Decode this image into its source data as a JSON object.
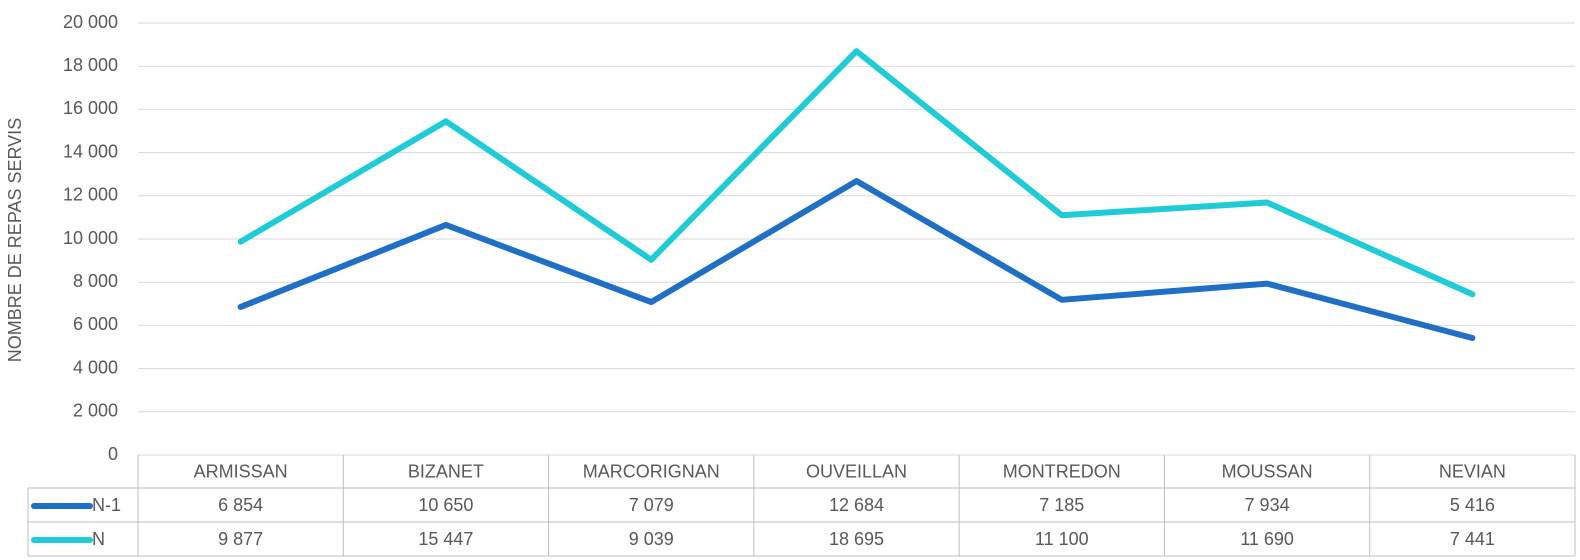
{
  "chart_data": {
    "type": "line",
    "y_label": "NOMBRE DE REPAS SERVIS",
    "categories": [
      "ARMISSAN",
      "BIZANET",
      "MARCORIGNAN",
      "OUVEILLAN",
      "MONTREDON",
      "MOUSSAN",
      "NEVIAN"
    ],
    "series": [
      {
        "name": "N-1",
        "color": "#1f6fc5",
        "values": [
          6854,
          10650,
          7079,
          12684,
          7185,
          7934,
          5416
        ],
        "value_labels": [
          "6 854",
          "10 650",
          "7 079",
          "12 684",
          "7 185",
          "7 934",
          "5 416"
        ]
      },
      {
        "name": "N",
        "color": "#1ecbd6",
        "values": [
          9877,
          15447,
          9039,
          18695,
          11100,
          11690,
          7441
        ],
        "value_labels": [
          "9 877",
          "15 447",
          "9 039",
          "18 695",
          "11 100",
          "11 690",
          "7 441"
        ]
      }
    ],
    "ylim": [
      0,
      20000
    ],
    "yticks": [
      0,
      {
        "value": 2000,
        "label": "2 000"
      },
      {
        "value": 4000,
        "label": "4 000"
      },
      {
        "value": 6000,
        "label": "6 000"
      },
      {
        "value": 8000,
        "label": "8 000"
      },
      {
        "value": 10000,
        "label": "10 000"
      },
      {
        "value": 12000,
        "label": "12 000"
      },
      {
        "value": 14000,
        "label": "14 000"
      },
      {
        "value": 16000,
        "label": "16 000"
      },
      {
        "value": 18000,
        "label": "18 000"
      },
      {
        "value": 20000,
        "label": "20 000"
      }
    ],
    "grid": true
  }
}
